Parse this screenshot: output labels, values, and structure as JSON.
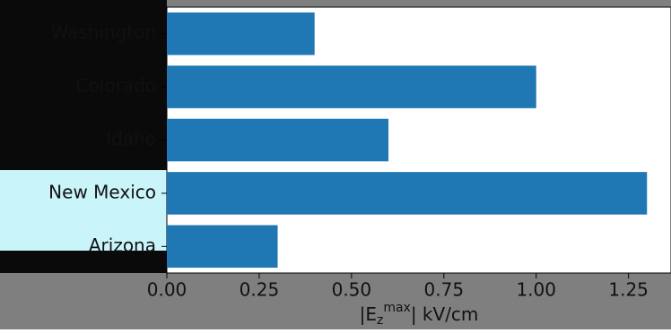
{
  "chart_data": {
    "type": "barh",
    "categories": [
      "Washington",
      "Colorado",
      "Idaho",
      "New Mexico",
      "Arizona"
    ],
    "values": [
      0.4,
      1.0,
      0.6,
      1.3,
      0.3
    ],
    "color": "#1f77b4",
    "xlim": [
      0,
      1.365
    ],
    "xticks": [
      {
        "value": 0,
        "label": "0.00"
      },
      0.25,
      {
        "value": 0.5,
        "label": "0.50"
      },
      0.75,
      {
        "value": 1,
        "label": "1.00"
      },
      1.25
    ],
    "x_label": {
      "open": "|E",
      "sub": "z",
      "sup": "max",
      "close": "| kV/cm"
    }
  }
}
